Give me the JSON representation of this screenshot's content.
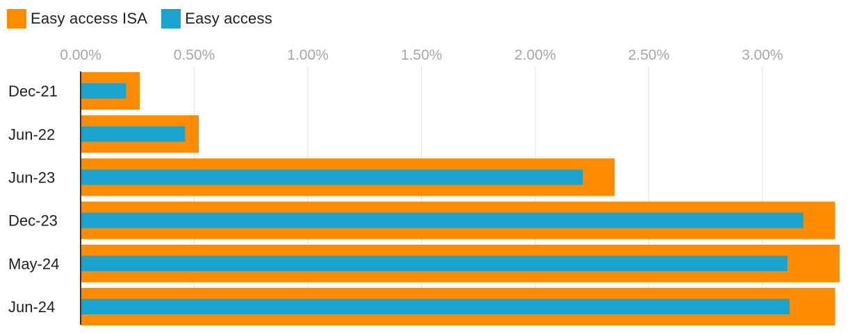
{
  "chart_data": {
    "type": "bar",
    "orientation": "horizontal",
    "categories": [
      "Dec-21",
      "Jun-22",
      "Jun-23",
      "Dec-23",
      "May-24",
      "Jun-24"
    ],
    "series": [
      {
        "name": "Easy access ISA",
        "color": "#FF8C00",
        "values": [
          0.26,
          0.52,
          2.35,
          3.32,
          3.34,
          3.32
        ]
      },
      {
        "name": "Easy access",
        "color": "#1BA3D0",
        "values": [
          0.2,
          0.46,
          2.21,
          3.18,
          3.11,
          3.12
        ]
      }
    ],
    "x_ticks": [
      "0.00%",
      "0.50%",
      "1.00%",
      "1.50%",
      "2.00%",
      "2.50%",
      "3.00%"
    ],
    "x_tick_values": [
      0,
      0.5,
      1.0,
      1.5,
      2.0,
      2.5,
      3.0
    ],
    "xlim": [
      0,
      3.34
    ],
    "grid": true,
    "legend_position": "top-left",
    "title": "",
    "xlabel": "",
    "ylabel": ""
  }
}
